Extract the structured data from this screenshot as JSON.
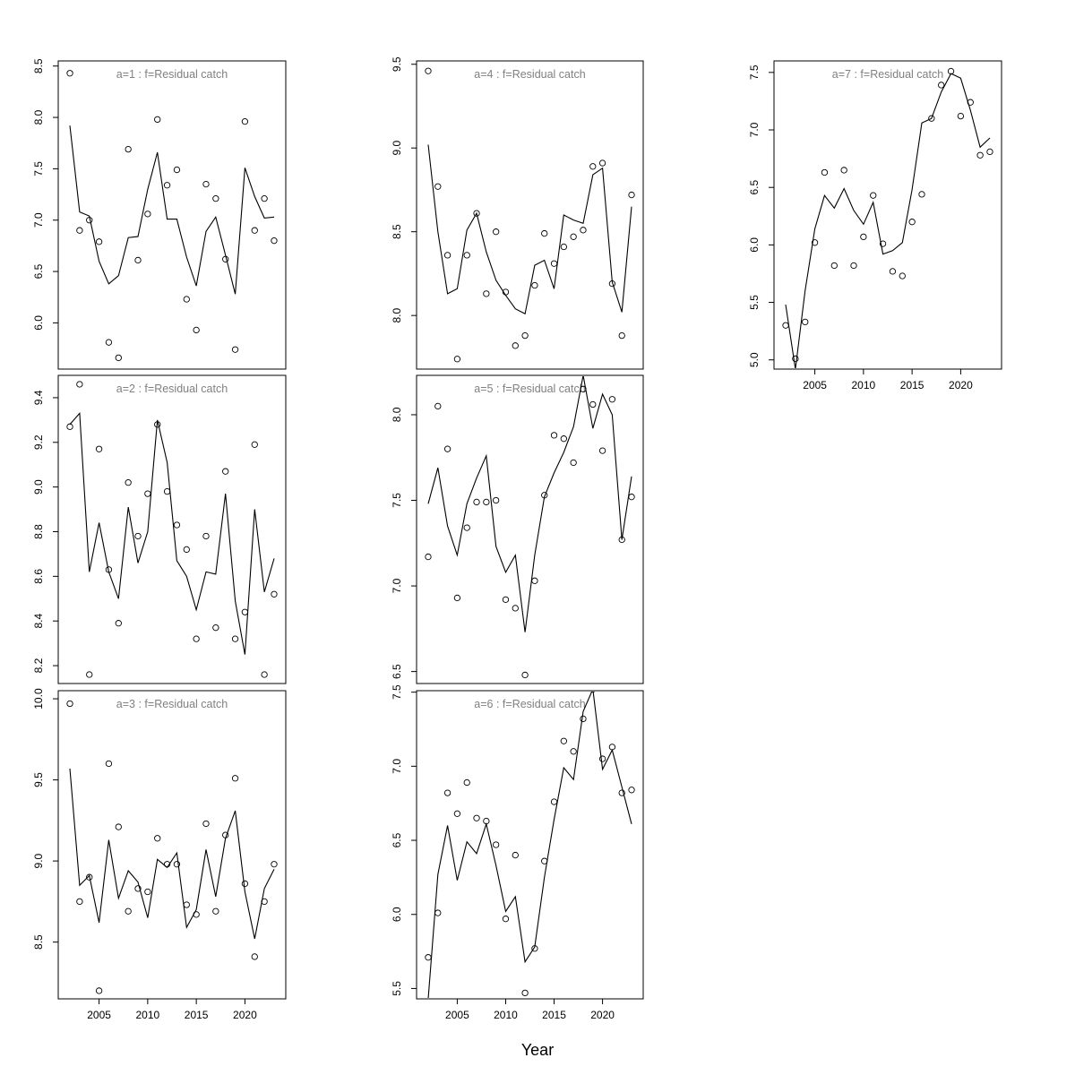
{
  "figure": {
    "x_axis_title": "Year",
    "point_color": "#000000",
    "line_color": "#000000",
    "title_color": "#808080"
  },
  "chart_data": [
    {
      "type": "line",
      "title": "a=1  :  f=Residual catch",
      "xlabel": "",
      "ylabel": "",
      "xlim": [
        2000.8,
        2024.2
      ],
      "ylim": [
        5.55,
        8.55
      ],
      "yticks": [
        "6.0",
        "6.5",
        "7.0",
        "7.5",
        "8.0",
        "8.5"
      ],
      "xticks": [],
      "x": [
        2002,
        2003,
        2004,
        2005,
        2006,
        2007,
        2008,
        2009,
        2010,
        2011,
        2012,
        2013,
        2014,
        2015,
        2016,
        2017,
        2018,
        2019,
        2020,
        2021,
        2022,
        2023
      ],
      "series": [
        {
          "kind": "observed",
          "style": "points",
          "values": [
            8.43,
            6.9,
            7.0,
            6.79,
            5.81,
            5.66,
            7.69,
            6.61,
            7.06,
            7.98,
            7.34,
            7.49,
            6.23,
            5.93,
            7.35,
            7.21,
            6.62,
            5.74,
            7.96,
            6.9,
            7.21,
            6.8
          ]
        },
        {
          "kind": "fitted",
          "style": "line",
          "values": [
            7.92,
            7.08,
            7.04,
            6.6,
            6.38,
            6.46,
            6.83,
            6.84,
            7.3,
            7.66,
            7.01,
            7.01,
            6.64,
            6.36,
            6.89,
            7.03,
            6.66,
            6.28,
            7.51,
            7.23,
            7.02,
            7.03
          ]
        }
      ]
    },
    {
      "type": "line",
      "title": "a=2  :  f=Residual catch",
      "xlabel": "",
      "ylabel": "",
      "xlim": [
        2000.8,
        2024.2
      ],
      "ylim": [
        8.12,
        9.5
      ],
      "yticks": [
        "8.2",
        "8.4",
        "8.6",
        "8.8",
        "9.0",
        "9.2",
        "9.4"
      ],
      "xticks": [],
      "x": [
        2002,
        2003,
        2004,
        2005,
        2006,
        2007,
        2008,
        2009,
        2010,
        2011,
        2012,
        2013,
        2014,
        2015,
        2016,
        2017,
        2018,
        2019,
        2020,
        2021,
        2022,
        2023
      ],
      "series": [
        {
          "kind": "observed",
          "style": "points",
          "values": [
            9.27,
            9.46,
            8.16,
            9.17,
            8.63,
            8.39,
            9.02,
            8.78,
            8.97,
            9.28,
            8.98,
            8.83,
            8.72,
            8.32,
            8.78,
            8.37,
            9.07,
            8.32,
            8.44,
            9.19,
            8.16,
            8.52
          ]
        },
        {
          "kind": "fitted",
          "style": "line",
          "values": [
            9.28,
            9.33,
            8.62,
            8.84,
            8.62,
            8.5,
            8.91,
            8.66,
            8.8,
            9.3,
            9.11,
            8.67,
            8.6,
            8.45,
            8.62,
            8.61,
            8.97,
            8.49,
            8.25,
            8.9,
            8.53,
            8.68
          ]
        }
      ]
    },
    {
      "type": "line",
      "title": "a=3  :  f=Residual catch",
      "xlabel": "",
      "ylabel": "",
      "xlim": [
        2000.8,
        2024.2
      ],
      "ylim": [
        8.15,
        10.05
      ],
      "yticks": [
        "8.5",
        "9.0",
        "9.5",
        "10.0"
      ],
      "xticks": [
        "2005",
        "2010",
        "2015",
        "2020"
      ],
      "x": [
        2002,
        2003,
        2004,
        2005,
        2006,
        2007,
        2008,
        2009,
        2010,
        2011,
        2012,
        2013,
        2014,
        2015,
        2016,
        2017,
        2018,
        2019,
        2020,
        2021,
        2022,
        2023
      ],
      "series": [
        {
          "kind": "observed",
          "style": "points",
          "values": [
            9.97,
            8.75,
            8.9,
            8.2,
            9.6,
            9.21,
            8.69,
            8.83,
            8.81,
            9.14,
            8.98,
            8.98,
            8.73,
            8.67,
            9.23,
            8.69,
            9.16,
            9.51,
            8.86,
            8.41,
            8.75,
            8.98
          ]
        },
        {
          "kind": "fitted",
          "style": "line",
          "values": [
            9.57,
            8.85,
            8.91,
            8.62,
            9.13,
            8.77,
            8.94,
            8.87,
            8.65,
            9.01,
            8.96,
            9.05,
            8.59,
            8.7,
            9.07,
            8.78,
            9.14,
            9.31,
            8.81,
            8.52,
            8.83,
            8.95
          ]
        }
      ]
    },
    {
      "type": "line",
      "title": "a=4  :  f=Residual catch",
      "xlabel": "",
      "ylabel": "",
      "xlim": [
        2000.8,
        2024.2
      ],
      "ylim": [
        7.68,
        9.52
      ],
      "yticks": [
        "8.0",
        "8.5",
        "9.0",
        "9.5"
      ],
      "xticks": [],
      "x": [
        2002,
        2003,
        2004,
        2005,
        2006,
        2007,
        2008,
        2009,
        2010,
        2011,
        2012,
        2013,
        2014,
        2015,
        2016,
        2017,
        2018,
        2019,
        2020,
        2021,
        2022,
        2023
      ],
      "series": [
        {
          "kind": "observed",
          "style": "points",
          "values": [
            9.46,
            8.77,
            8.36,
            7.74,
            8.36,
            8.61,
            8.13,
            8.5,
            8.14,
            7.82,
            7.88,
            8.18,
            8.49,
            8.31,
            8.41,
            8.47,
            8.51,
            8.89,
            8.91,
            8.19,
            7.88,
            8.72
          ]
        },
        {
          "kind": "fitted",
          "style": "line",
          "values": [
            9.02,
            8.5,
            8.13,
            8.16,
            8.51,
            8.61,
            8.38,
            8.21,
            8.12,
            8.04,
            8.01,
            8.3,
            8.33,
            8.16,
            8.6,
            8.57,
            8.55,
            8.84,
            8.88,
            8.2,
            8.02,
            8.65
          ]
        }
      ]
    },
    {
      "type": "line",
      "title": "a=5  :  f=Residual catch",
      "xlabel": "",
      "ylabel": "",
      "xlim": [
        2000.8,
        2024.2
      ],
      "ylim": [
        6.43,
        8.23
      ],
      "yticks": [
        "6.5",
        "7.0",
        "7.5",
        "8.0"
      ],
      "xticks": [],
      "x": [
        2002,
        2003,
        2004,
        2005,
        2006,
        2007,
        2008,
        2009,
        2010,
        2011,
        2012,
        2013,
        2014,
        2015,
        2016,
        2017,
        2018,
        2019,
        2020,
        2021,
        2022,
        2023
      ],
      "series": [
        {
          "kind": "observed",
          "style": "points",
          "values": [
            7.17,
            8.05,
            7.8,
            6.93,
            7.34,
            7.49,
            7.49,
            7.5,
            6.92,
            6.87,
            6.48,
            7.03,
            7.53,
            7.88,
            7.86,
            7.72,
            8.15,
            8.06,
            7.79,
            8.09,
            7.27,
            7.52
          ]
        },
        {
          "kind": "fitted",
          "style": "line",
          "values": [
            7.48,
            7.69,
            7.35,
            7.18,
            7.48,
            7.63,
            7.76,
            7.23,
            7.08,
            7.18,
            6.73,
            7.18,
            7.52,
            7.66,
            7.78,
            7.93,
            8.23,
            7.92,
            8.12,
            8.0,
            7.27,
            7.64
          ]
        }
      ]
    },
    {
      "type": "line",
      "title": "a=6  :  f=Residual catch",
      "xlabel": "",
      "ylabel": "",
      "xlim": [
        2000.8,
        2024.2
      ],
      "ylim": [
        5.43,
        7.51
      ],
      "yticks": [
        "5.5",
        "6.0",
        "6.5",
        "7.0",
        "7.5"
      ],
      "xticks": [
        "2005",
        "2010",
        "2015",
        "2020"
      ],
      "x": [
        2002,
        2003,
        2004,
        2005,
        2006,
        2007,
        2008,
        2009,
        2010,
        2011,
        2012,
        2013,
        2014,
        2015,
        2016,
        2017,
        2018,
        2019,
        2020,
        2021,
        2022,
        2023
      ],
      "series": [
        {
          "kind": "observed",
          "style": "points",
          "values": [
            5.71,
            6.01,
            6.82,
            6.68,
            6.89,
            6.65,
            6.63,
            6.47,
            5.97,
            6.4,
            5.47,
            5.77,
            6.36,
            6.76,
            7.17,
            7.1,
            7.32,
            7.52,
            7.05,
            7.13,
            6.82,
            6.84
          ]
        },
        {
          "kind": "fitted",
          "style": "line",
          "values": [
            5.43,
            6.27,
            6.6,
            6.23,
            6.49,
            6.41,
            6.61,
            6.33,
            6.02,
            6.12,
            5.68,
            5.78,
            6.25,
            6.64,
            6.99,
            6.91,
            7.37,
            7.52,
            6.98,
            7.11,
            6.86,
            6.61
          ]
        }
      ]
    },
    {
      "type": "line",
      "title": "a=7  :  f=Residual catch",
      "xlabel": "",
      "ylabel": "",
      "xlim": [
        2000.8,
        2024.2
      ],
      "ylim": [
        4.92,
        7.6
      ],
      "yticks": [
        "5.0",
        "5.5",
        "6.0",
        "6.5",
        "7.0",
        "7.5"
      ],
      "xticks": [
        "2005",
        "2010",
        "2015",
        "2020"
      ],
      "x": [
        2002,
        2003,
        2004,
        2005,
        2006,
        2007,
        2008,
        2009,
        2010,
        2011,
        2012,
        2013,
        2014,
        2015,
        2016,
        2017,
        2018,
        2019,
        2020,
        2021,
        2022,
        2023
      ],
      "series": [
        {
          "kind": "observed",
          "style": "points",
          "values": [
            5.3,
            5.01,
            5.33,
            6.02,
            6.63,
            5.82,
            6.65,
            5.82,
            6.07,
            6.43,
            6.01,
            5.77,
            5.73,
            6.2,
            6.44,
            7.1,
            7.39,
            7.51,
            7.12,
            7.24,
            6.78,
            6.81
          ]
        },
        {
          "kind": "fitted",
          "style": "line",
          "values": [
            5.48,
            4.92,
            5.6,
            6.14,
            6.43,
            6.32,
            6.49,
            6.3,
            6.18,
            6.37,
            5.92,
            5.95,
            6.02,
            6.48,
            7.06,
            7.1,
            7.33,
            7.49,
            7.45,
            7.17,
            6.85,
            6.93
          ]
        }
      ]
    }
  ]
}
